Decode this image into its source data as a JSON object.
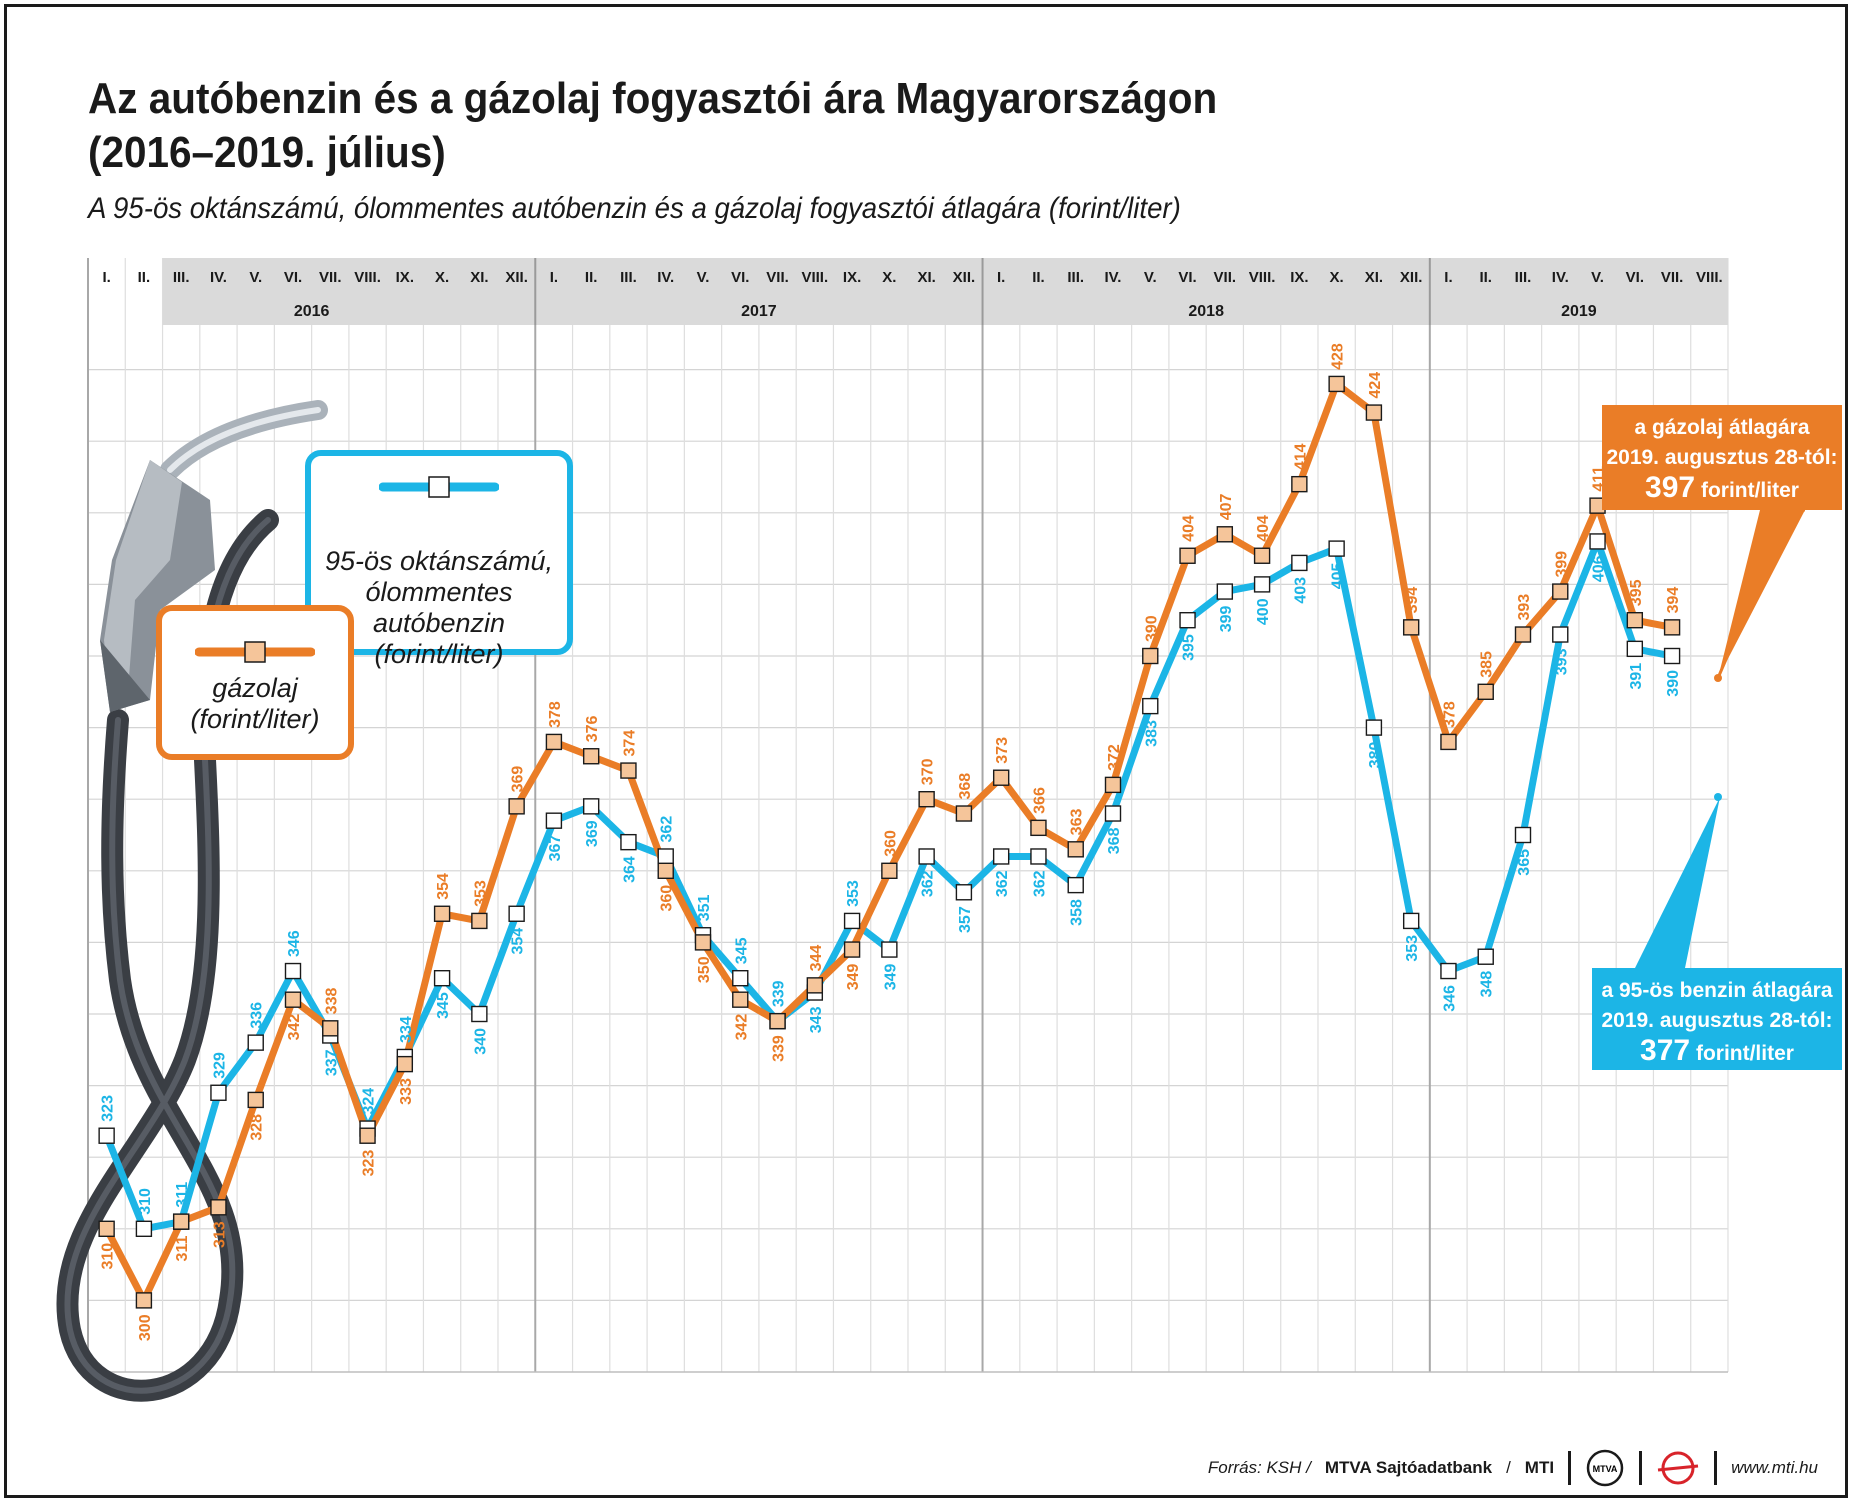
{
  "title_line1": "Az autóbenzin és a gázolaj fogyasztói ára Magyarországon",
  "title_line2": "(2016–2019. július)",
  "subtitle": "A 95-ös oktánszámú, ólommentes autóbenzin és a gázolaj fogyasztói átlagára (forint/liter)",
  "legend": {
    "benzin": [
      "95-ös oktánszámú,",
      "ólommentes",
      "autóbenzin",
      "(forint/liter)"
    ],
    "diesel": [
      "gázolaj",
      "(forint/liter)"
    ]
  },
  "notes": {
    "diesel": {
      "line1": "a gázolaj átlagára",
      "line2": "2019. augusztus 28-tól:",
      "value": "397",
      "unit": "forint/liter"
    },
    "benzin": {
      "line1": "a 95-ös benzin átlagára",
      "line2": "2019. augusztus 28-tól:",
      "value": "377",
      "unit": "forint/liter"
    }
  },
  "footer": {
    "source_prefix": "Forrás: KSH /",
    "source_bold": "MTVA Sajtóadatbank",
    "source_sep": "/",
    "source_end": "MTI",
    "logo1": "MTVA",
    "site": "www.mti.hu"
  },
  "colors": {
    "benzin": "#1cb5e6",
    "diesel": "#ea7d27",
    "diesel_marker": "#f5c59a",
    "header_band": "#dadada"
  },
  "chart_data": {
    "type": "line",
    "years": [
      "2016",
      "2017",
      "2018",
      "2019"
    ],
    "months": [
      "I.",
      "II.",
      "III.",
      "IV.",
      "V.",
      "VI.",
      "VII.",
      "VIII.",
      "IX.",
      "X.",
      "XI.",
      "XII."
    ],
    "x_labels": [
      "I.",
      "II.",
      "III.",
      "IV.",
      "V.",
      "VI.",
      "VII.",
      "VIII.",
      "IX.",
      "X.",
      "XI.",
      "XII.",
      "I.",
      "II.",
      "III.",
      "IV.",
      "V.",
      "VI.",
      "VII.",
      "VIII.",
      "IX.",
      "X.",
      "XI.",
      "XII.",
      "I.",
      "II.",
      "III.",
      "IV.",
      "V.",
      "VI.",
      "VII.",
      "VIII.",
      "IX.",
      "X.",
      "XI.",
      "XII.",
      "I.",
      "II.",
      "III.",
      "IV.",
      "V.",
      "VI.",
      "VII.",
      "VIII."
    ],
    "ylim": [
      290,
      440
    ],
    "grid": true,
    "series": [
      {
        "name": "95-ös oktánszámú, ólommentes autóbenzin",
        "key": "benzin",
        "values": [
          323,
          310,
          311,
          329,
          336,
          346,
          337,
          324,
          334,
          345,
          340,
          354,
          367,
          369,
          364,
          362,
          351,
          345,
          339,
          343,
          353,
          349,
          362,
          357,
          362,
          362,
          358,
          368,
          383,
          395,
          399,
          400,
          403,
          405,
          380,
          353,
          346,
          348,
          365,
          393,
          406,
          391,
          390
        ]
      },
      {
        "name": "gázolaj",
        "key": "diesel",
        "values": [
          310,
          300,
          311,
          313,
          328,
          342,
          338,
          323,
          333,
          354,
          353,
          369,
          378,
          376,
          374,
          360,
          350,
          342,
          339,
          344,
          349,
          360,
          370,
          368,
          373,
          366,
          363,
          372,
          390,
          404,
          407,
          404,
          414,
          428,
          424,
          394,
          378,
          385,
          393,
          399,
          411,
          395,
          394
        ]
      }
    ]
  }
}
